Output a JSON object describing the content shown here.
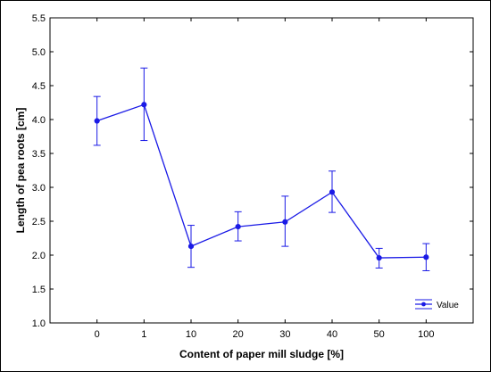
{
  "chart_data": {
    "type": "line",
    "title": "",
    "xlabel": "Content of paper mill sludge [%]",
    "ylabel": "Length of pea roots [cm]",
    "categories": [
      "0",
      "1",
      "10",
      "20",
      "30",
      "40",
      "50",
      "100"
    ],
    "series": [
      {
        "name": "Value",
        "values": [
          3.98,
          4.22,
          2.13,
          2.42,
          2.49,
          2.93,
          1.96,
          1.97
        ],
        "error_low": [
          3.62,
          3.69,
          1.82,
          2.21,
          2.13,
          2.63,
          1.81,
          1.77
        ],
        "error_high": [
          4.34,
          4.76,
          2.44,
          2.64,
          2.87,
          3.24,
          2.1,
          2.17
        ],
        "color": "#1a1ae6"
      }
    ],
    "ylim": [
      1.0,
      5.5
    ],
    "yticks": [
      "1.0",
      "1.5",
      "2.0",
      "2.5",
      "3.0",
      "3.5",
      "4.0",
      "4.5",
      "5.0",
      "5.5"
    ],
    "grid": false,
    "legend_position": "bottom-right"
  }
}
